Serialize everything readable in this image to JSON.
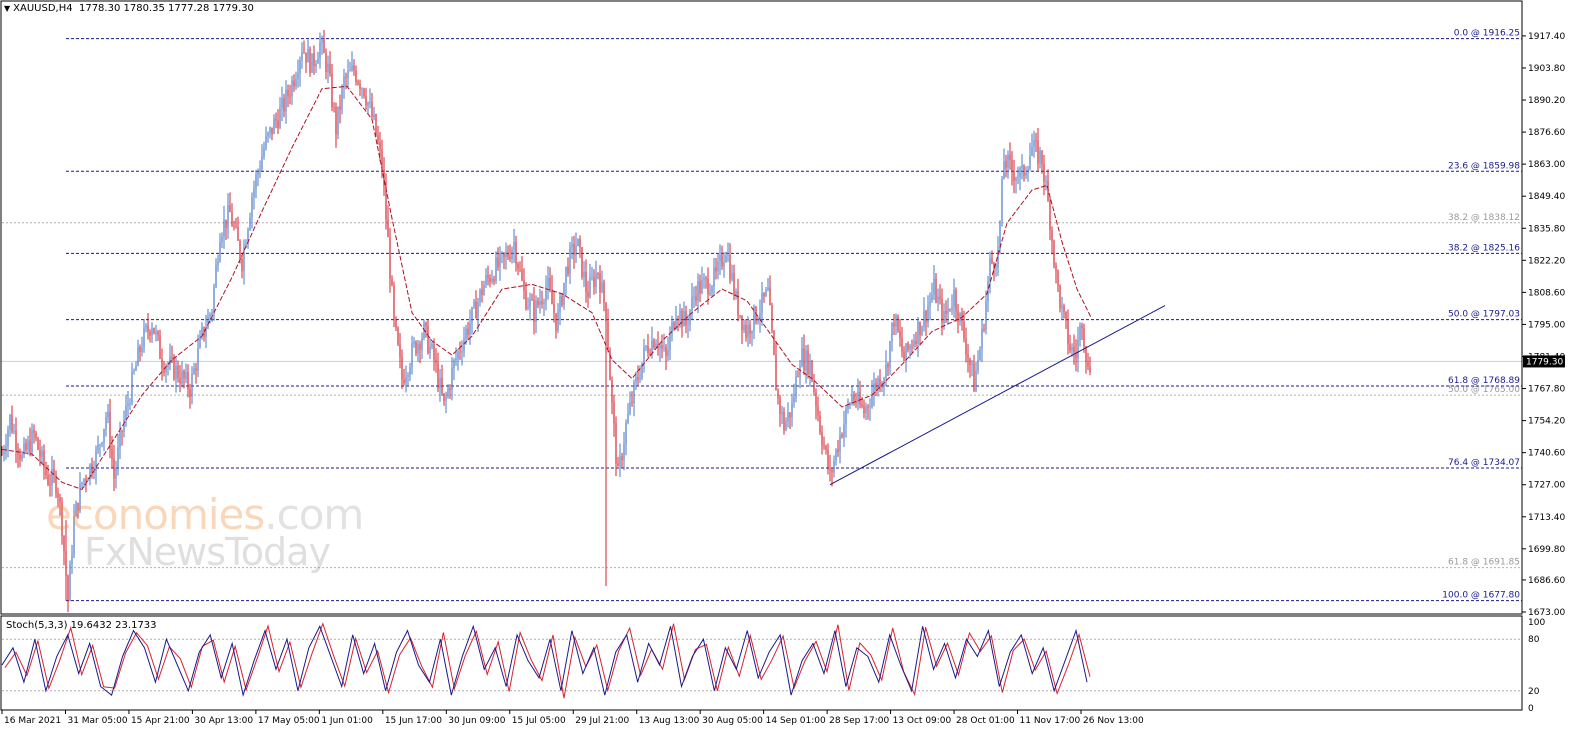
{
  "header": {
    "symbol_timeframe": "XAUUSD,H4",
    "ohlc": "1778.30 1780.35 1777.28 1779.30"
  },
  "stochastic": {
    "label": "Stoch(5,3,3) 19.6432 23.1733"
  },
  "watermark": {
    "line1_part1": "economies",
    "line1_part2": ".com",
    "line2": "FxNewsToday"
  },
  "colors": {
    "background": "#ffffff",
    "fib_line": "#1a1a8c",
    "grid_dotted": "#b0b0b0",
    "candle_up": "#4a78c8",
    "candle_down": "#d6232f",
    "moving_average": "#b01020",
    "trendline": "#1a1a8c",
    "stoch_main": "#1a1a8c",
    "stoch_signal": "#d6232f",
    "current_price_line": "#a8d8f0",
    "price_tag_bg": "#000000",
    "price_tag_text": "#ffffff"
  },
  "chart_data": {
    "type": "candlestick",
    "symbol": "XAUUSD",
    "timeframe": "H4",
    "ylim": [
      1673.0,
      1925.0
    ],
    "y_ticks": [
      "1917.40",
      "1903.80",
      "1890.20",
      "1876.60",
      "1863.00",
      "1849.40",
      "1835.80",
      "1822.20",
      "1808.60",
      "1795.00",
      "1781.40",
      "1767.80",
      "1754.20",
      "1740.60",
      "1727.00",
      "1713.40",
      "1699.80",
      "1686.60",
      "1673.00"
    ],
    "x_ticks": [
      "16 Mar 2021",
      "31 Mar 05:00",
      "15 Apr 21:00",
      "30 Apr 13:00",
      "17 May 05:00",
      "1 Jun 01:00",
      "15 Jun 17:00",
      "30 Jun 09:00",
      "15 Jul 05:00",
      "29 Jul 21:00",
      "13 Aug 13:00",
      "30 Aug 05:00",
      "14 Sep 01:00",
      "28 Sep 17:00",
      "13 Oct 09:00",
      "28 Oct 01:00",
      "11 Nov 17:00",
      "26 Nov 13:00"
    ],
    "current_price": "1779.30",
    "fibonacci_primary": [
      {
        "label": "0.0 @ 1916.25",
        "value": 1916.25
      },
      {
        "label": "23.6 @ 1859.98",
        "value": 1859.98
      },
      {
        "label": "38.2 @ 1825.16",
        "value": 1825.16
      },
      {
        "label": "50.0 @ 1797.03",
        "value": 1797.03
      },
      {
        "label": "61.8 @ 1768.89",
        "value": 1768.89
      },
      {
        "label": "76.4 @ 1734.07",
        "value": 1734.07
      },
      {
        "label": "100.0 @ 1677.80",
        "value": 1677.8
      }
    ],
    "fibonacci_secondary": [
      {
        "label": "38.2 @ 1838.12",
        "value": 1838.12
      },
      {
        "label": "50.0 @ 1765.00",
        "value": 1765.0
      },
      {
        "label": "61.8 @ 1691.85",
        "value": 1691.85
      }
    ],
    "price_path": [
      [
        0,
        1740
      ],
      [
        8,
        1755
      ],
      [
        20,
        1738
      ],
      [
        32,
        1748
      ],
      [
        45,
        1730
      ],
      [
        55,
        1728
      ],
      [
        60,
        1710
      ],
      [
        66,
        1678
      ],
      [
        72,
        1712
      ],
      [
        80,
        1728
      ],
      [
        95,
        1740
      ],
      [
        105,
        1758
      ],
      [
        112,
        1730
      ],
      [
        120,
        1750
      ],
      [
        130,
        1770
      ],
      [
        140,
        1788
      ],
      [
        150,
        1796
      ],
      [
        160,
        1780
      ],
      [
        175,
        1775
      ],
      [
        188,
        1768
      ],
      [
        200,
        1790
      ],
      [
        210,
        1802
      ],
      [
        218,
        1835
      ],
      [
        228,
        1842
      ],
      [
        240,
        1822
      ],
      [
        250,
        1850
      ],
      [
        262,
        1870
      ],
      [
        272,
        1880
      ],
      [
        282,
        1888
      ],
      [
        292,
        1900
      ],
      [
        300,
        1913
      ],
      [
        310,
        1905
      ],
      [
        318,
        1914
      ],
      [
        326,
        1903
      ],
      [
        334,
        1878
      ],
      [
        342,
        1898
      ],
      [
        352,
        1903
      ],
      [
        362,
        1895
      ],
      [
        372,
        1880
      ],
      [
        380,
        1862
      ],
      [
        386,
        1830
      ],
      [
        392,
        1795
      ],
      [
        400,
        1772
      ],
      [
        412,
        1785
      ],
      [
        422,
        1792
      ],
      [
        432,
        1780
      ],
      [
        442,
        1760
      ],
      [
        452,
        1778
      ],
      [
        462,
        1790
      ],
      [
        472,
        1800
      ],
      [
        482,
        1812
      ],
      [
        492,
        1818
      ],
      [
        502,
        1822
      ],
      [
        512,
        1830
      ],
      [
        522,
        1808
      ],
      [
        532,
        1800
      ],
      [
        545,
        1812
      ],
      [
        555,
        1795
      ],
      [
        565,
        1820
      ],
      [
        575,
        1830
      ],
      [
        585,
        1808
      ],
      [
        596,
        1818
      ],
      [
        604,
        1800
      ],
      [
        610,
        1760
      ],
      [
        616,
        1730
      ],
      [
        624,
        1752
      ],
      [
        634,
        1770
      ],
      [
        644,
        1785
      ],
      [
        654,
        1790
      ],
      [
        664,
        1780
      ],
      [
        674,
        1802
      ],
      [
        684,
        1795
      ],
      [
        694,
        1810
      ],
      [
        704,
        1812
      ],
      [
        714,
        1815
      ],
      [
        724,
        1828
      ],
      [
        734,
        1805
      ],
      [
        744,
        1792
      ],
      [
        755,
        1800
      ],
      [
        766,
        1808
      ],
      [
        775,
        1765
      ],
      [
        782,
        1752
      ],
      [
        790,
        1760
      ],
      [
        798,
        1782
      ],
      [
        808,
        1778
      ],
      [
        818,
        1752
      ],
      [
        828,
        1730
      ],
      [
        838,
        1748
      ],
      [
        850,
        1765
      ],
      [
        862,
        1758
      ],
      [
        874,
        1770
      ],
      [
        884,
        1776
      ],
      [
        892,
        1798
      ],
      [
        902,
        1780
      ],
      [
        912,
        1790
      ],
      [
        922,
        1798
      ],
      [
        932,
        1810
      ],
      [
        942,
        1797
      ],
      [
        952,
        1808
      ],
      [
        962,
        1790
      ],
      [
        972,
        1770
      ],
      [
        980,
        1790
      ],
      [
        988,
        1820
      ],
      [
        996,
        1825
      ],
      [
        1002,
        1865
      ],
      [
        1010,
        1860
      ],
      [
        1020,
        1858
      ],
      [
        1030,
        1870
      ],
      [
        1040,
        1865
      ],
      [
        1048,
        1840
      ],
      [
        1054,
        1815
      ],
      [
        1060,
        1800
      ],
      [
        1068,
        1785
      ],
      [
        1074,
        1782
      ],
      [
        1080,
        1798
      ],
      [
        1086,
        1775
      ],
      [
        1089,
        1779
      ]
    ],
    "ma_path": [
      [
        0,
        1742
      ],
      [
        30,
        1740
      ],
      [
        60,
        1728
      ],
      [
        80,
        1725
      ],
      [
        110,
        1745
      ],
      [
        140,
        1765
      ],
      [
        170,
        1780
      ],
      [
        200,
        1790
      ],
      [
        230,
        1815
      ],
      [
        260,
        1843
      ],
      [
        290,
        1870
      ],
      [
        320,
        1895
      ],
      [
        345,
        1896
      ],
      [
        370,
        1882
      ],
      [
        390,
        1840
      ],
      [
        410,
        1800
      ],
      [
        430,
        1788
      ],
      [
        450,
        1782
      ],
      [
        470,
        1790
      ],
      [
        500,
        1810
      ],
      [
        530,
        1812
      ],
      [
        560,
        1808
      ],
      [
        590,
        1800
      ],
      [
        610,
        1780
      ],
      [
        630,
        1772
      ],
      [
        660,
        1788
      ],
      [
        690,
        1800
      ],
      [
        720,
        1810
      ],
      [
        745,
        1805
      ],
      [
        770,
        1790
      ],
      [
        790,
        1778
      ],
      [
        810,
        1772
      ],
      [
        840,
        1760
      ],
      [
        870,
        1765
      ],
      [
        900,
        1778
      ],
      [
        930,
        1792
      ],
      [
        960,
        1798
      ],
      [
        985,
        1808
      ],
      [
        1005,
        1838
      ],
      [
        1030,
        1852
      ],
      [
        1045,
        1854
      ],
      [
        1060,
        1830
      ],
      [
        1075,
        1810
      ],
      [
        1089,
        1798
      ]
    ],
    "trendline": {
      "from": [
        830,
        1727
      ],
      "to": [
        1165,
        1803
      ]
    },
    "stochastic": {
      "levels": [
        "100",
        "80",
        "20",
        "0"
      ],
      "main": [
        50,
        70,
        30,
        80,
        20,
        60,
        85,
        40,
        75,
        25,
        15,
        60,
        90,
        70,
        30,
        80,
        50,
        20,
        65,
        85,
        35,
        75,
        15,
        55,
        90,
        45,
        80,
        20,
        70,
        95,
        60,
        25,
        85,
        40,
        75,
        20,
        65,
        90,
        50,
        30,
        80,
        15,
        60,
        95,
        45,
        70,
        25,
        85,
        55,
        35,
        80,
        20,
        90,
        40,
        70,
        15,
        65,
        85,
        30,
        75,
        50,
        95,
        25,
        60,
        80,
        20,
        70,
        45,
        90,
        35,
        65,
        85,
        15,
        55,
        75,
        40,
        90,
        25,
        70,
        60,
        30,
        85,
        50,
        20,
        95,
        45,
        75,
        35,
        80,
        60,
        90,
        25,
        65,
        85,
        40,
        70,
        20,
        55,
        90,
        30
      ]
    }
  }
}
